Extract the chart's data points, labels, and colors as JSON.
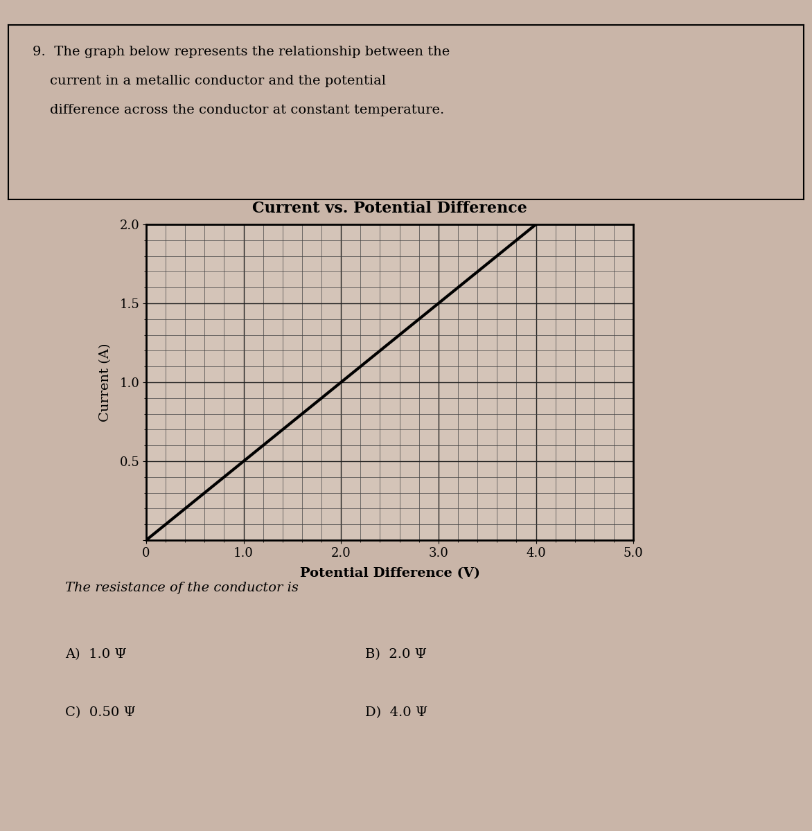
{
  "title": "Current vs. Potential Difference",
  "xlabel": "Potential Difference (V)",
  "ylabel": "Current (A)",
  "xlim": [
    0,
    5.0
  ],
  "ylim": [
    0,
    2.0
  ],
  "xticks": [
    0,
    1.0,
    2.0,
    3.0,
    4.0,
    5.0
  ],
  "yticks": [
    0.0,
    0.5,
    1.0,
    1.5,
    2.0
  ],
  "xtick_labels": [
    "0",
    "1.0",
    "2.0",
    "3.0",
    "4.0",
    "5.0"
  ],
  "ytick_labels": [
    "",
    "0.5",
    "1.0",
    "1.5",
    "2.0"
  ],
  "line_x": [
    0,
    4.0
  ],
  "line_y": [
    0,
    2.0
  ],
  "line_color": "#000000",
  "line_width": 2.5,
  "grid_major_color": "#222222",
  "grid_minor_color": "#444444",
  "background_color": "#c9b5a8",
  "plot_bg_color": "#d4c4b8",
  "question_text_line1": "9.  The graph below represents the relationship between the",
  "question_text_line2": "    current in a metallic conductor and the potential",
  "question_text_line3": "    difference across the conductor at constant temperature.",
  "answer_text_top": "The resistance of the conductor is",
  "answer_A": "A)  1.0 Ψ",
  "answer_B": "B)  2.0 Ψ",
  "answer_C": "C)  0.50 Ψ",
  "answer_D": "D)  4.0 Ψ",
  "title_fontsize": 16,
  "axis_label_fontsize": 14,
  "tick_fontsize": 13,
  "question_fontsize": 14,
  "answer_fontsize": 14,
  "minor_x_step": 0.2,
  "minor_y_step": 0.1
}
